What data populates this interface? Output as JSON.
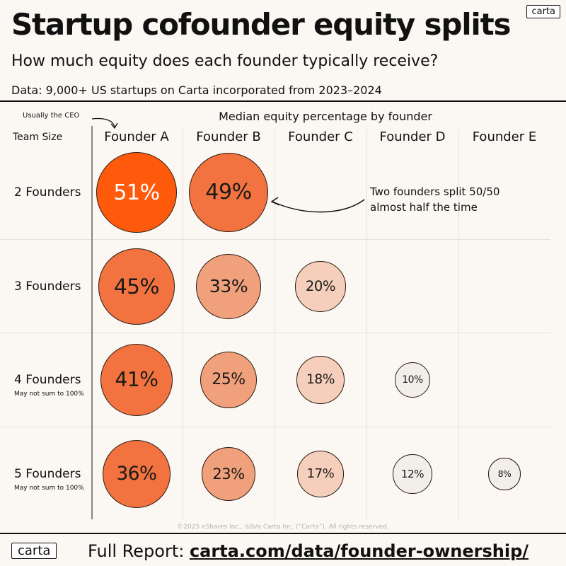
{
  "header": {
    "title": "Startup cofounder equity splits",
    "subtitle": "How much equity does each founder typically receive?",
    "source": "Data: 9,000+ US startups on Carta incorporated from 2023–2024",
    "logo": "carta"
  },
  "annotations": {
    "ceo": "Usually the CEO",
    "split_line1": "Two founders split 50/50",
    "split_line2": "almost half the time"
  },
  "chart_data": {
    "type": "bubble-table",
    "title": "Median equity percentage by founder",
    "row_header": "Team Size",
    "columns": [
      "Founder A",
      "Founder B",
      "Founder C",
      "Founder D",
      "Founder E"
    ],
    "rows": [
      {
        "label": "2 Founders",
        "note": "",
        "values": [
          51,
          49
        ]
      },
      {
        "label": "3 Founders",
        "note": "",
        "values": [
          45,
          33,
          20
        ]
      },
      {
        "label": "4 Founders",
        "note": "May not sum to 100%",
        "values": [
          41,
          25,
          18,
          10
        ]
      },
      {
        "label": "5 Founders",
        "note": "May not sum to 100%",
        "values": [
          36,
          23,
          17,
          12,
          8
        ]
      }
    ],
    "unit": "%"
  },
  "footer": {
    "copyright": "©2025 eShares Inc., d/b/a Carta Inc. (“Carta”). All rights reserved.",
    "logo": "carta",
    "label": "Full Report:",
    "link": "carta.com/data/founder-ownership/"
  },
  "colors": {
    "background": "#fbf7f2",
    "scale": [
      "#f2eeea",
      "#f5cfbc",
      "#f0a07b",
      "#f2733f",
      "#ff5a0c"
    ]
  }
}
